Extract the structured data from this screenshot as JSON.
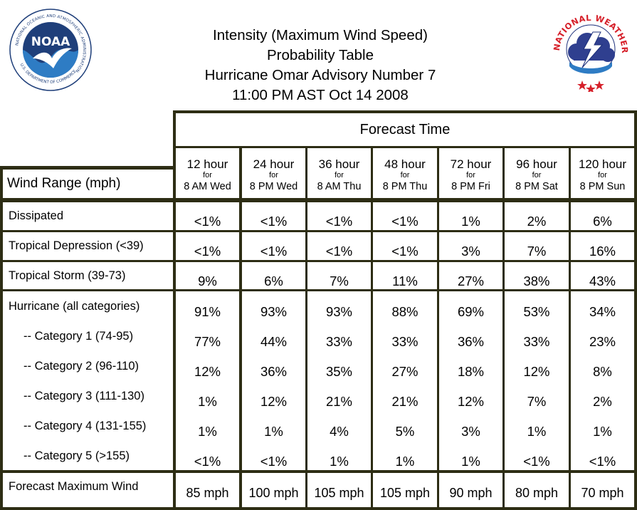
{
  "header": {
    "title_line1": "Intensity (Maximum Wind Speed) Probability Table",
    "title_line2": "Hurricane Omar Advisory Number 7",
    "title_line3": "11:00 PM AST Oct 14 2008"
  },
  "logos": {
    "noaa": {
      "name": "NOAA",
      "ring_text": "NATIONAL OCEANIC AND ATMOSPHERIC ADMINISTRATION",
      "bottom_text": "U.S. DEPARTMENT OF COMMERCE",
      "colors": {
        "navy": "#1f3f7a",
        "sky": "#2e7cc4",
        "white": "#ffffff"
      }
    },
    "nws": {
      "ring_text": "NATIONAL WEATHER SERVICE",
      "colors": {
        "red": "#d6202a",
        "navy": "#1c2f7a",
        "cloud": "#2f3f8f"
      }
    }
  },
  "table": {
    "forecast_time_label": "Forecast Time",
    "wind_range_label": "Wind Range (mph)",
    "for_label": "for",
    "columns": [
      {
        "hours": "12 hour",
        "time": "8 AM Wed"
      },
      {
        "hours": "24 hour",
        "time": "8 PM Wed"
      },
      {
        "hours": "36 hour",
        "time": "8 AM Thu"
      },
      {
        "hours": "48 hour",
        "time": "8 PM Thu"
      },
      {
        "hours": "72 hour",
        "time": "8 PM Fri"
      },
      {
        "hours": "96 hour",
        "time": "8 PM Sat"
      },
      {
        "hours": "120 hour",
        "time": "8 PM Sun"
      }
    ],
    "groups": [
      {
        "rows": [
          {
            "label": "Dissipated",
            "values": [
              "<1%",
              "<1%",
              "<1%",
              "<1%",
              "1%",
              "2%",
              "6%"
            ]
          }
        ]
      },
      {
        "rows": [
          {
            "label": "Tropical Depression (<39)",
            "values": [
              "<1%",
              "<1%",
              "<1%",
              "<1%",
              "3%",
              "7%",
              "16%"
            ]
          }
        ]
      },
      {
        "rows": [
          {
            "label": "Tropical Storm (39-73)",
            "values": [
              "9%",
              "6%",
              "7%",
              "11%",
              "27%",
              "38%",
              "43%"
            ]
          }
        ]
      },
      {
        "rows": [
          {
            "label": "Hurricane (all categories)",
            "values": [
              "91%",
              "93%",
              "93%",
              "88%",
              "69%",
              "53%",
              "34%"
            ]
          },
          {
            "label": "   -- Category 1 (74-95)",
            "values": [
              "77%",
              "44%",
              "33%",
              "33%",
              "36%",
              "33%",
              "23%"
            ]
          },
          {
            "label": "   -- Category 2 (96-110)",
            "values": [
              "12%",
              "36%",
              "35%",
              "27%",
              "18%",
              "12%",
              "8%"
            ]
          },
          {
            "label": "   -- Category 3 (111-130)",
            "values": [
              "1%",
              "12%",
              "21%",
              "21%",
              "12%",
              "7%",
              "2%"
            ]
          },
          {
            "label": "   -- Category 4 (131-155)",
            "values": [
              "1%",
              "1%",
              "4%",
              "5%",
              "3%",
              "1%",
              "1%"
            ]
          },
          {
            "label": "   -- Category 5 (>155)",
            "values": [
              "<1%",
              "<1%",
              "1%",
              "1%",
              "1%",
              "<1%",
              "<1%"
            ]
          }
        ]
      },
      {
        "rows": [
          {
            "label": "Forecast Maximum Wind",
            "values": [
              "85 mph",
              "100 mph",
              "105 mph",
              "105 mph",
              "90 mph",
              "80 mph",
              "70 mph"
            ]
          }
        ]
      }
    ]
  }
}
